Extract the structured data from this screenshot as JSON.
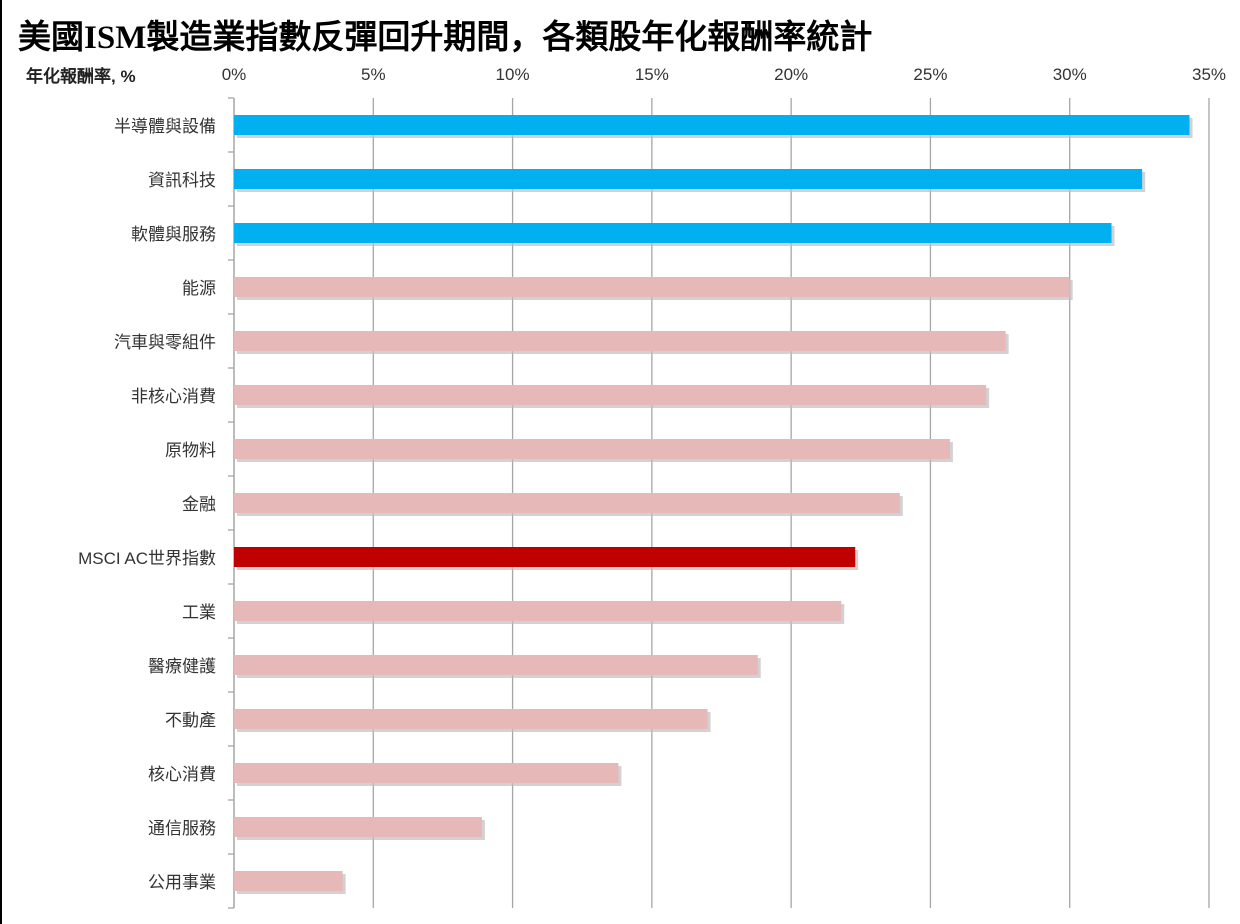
{
  "chart_data": {
    "type": "bar",
    "orientation": "horizontal",
    "title": "美國ISM製造業指數反彈回升期間，各類股年化報酬率統計",
    "xlabel": "年化報酬率, %",
    "ylabel": "",
    "xlim": [
      0,
      35
    ],
    "xticks": [
      "0%",
      "5%",
      "10%",
      "15%",
      "20%",
      "25%",
      "30%",
      "35%"
    ],
    "grid": "vertical",
    "categories": [
      "半導體與設備",
      "資訊科技",
      "軟體與服務",
      "能源",
      "汽車與零組件",
      "非核心消費",
      "原物料",
      "金融",
      "MSCI AC世界指數",
      "工業",
      "醫療健護",
      "不動產",
      "核心消費",
      "通信服務",
      "公用事業"
    ],
    "values": [
      34.3,
      32.6,
      31.5,
      30.0,
      27.7,
      27.0,
      25.7,
      23.9,
      22.3,
      21.8,
      18.8,
      17.0,
      13.8,
      8.9,
      3.9
    ],
    "colors": [
      "#00b0f0",
      "#00b0f0",
      "#00b0f0",
      "#e6b8b7",
      "#e6b8b7",
      "#e6b8b7",
      "#e6b8b7",
      "#e6b8b7",
      "#c00000",
      "#e6b8b7",
      "#e6b8b7",
      "#e6b8b7",
      "#e6b8b7",
      "#e6b8b7",
      "#e6b8b7"
    ]
  }
}
